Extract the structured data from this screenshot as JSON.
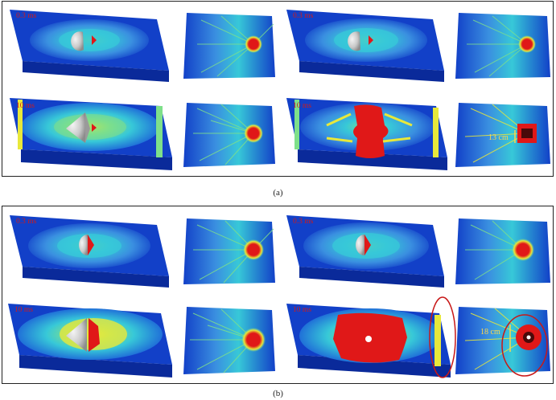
{
  "figure": {
    "caption_a": "(a)",
    "caption_b": "(b)",
    "panel_a": {
      "time_labels": [
        "0.3 ms",
        "0.3 ms",
        "10 ms",
        "10 ms"
      ],
      "dimension_label": "13 cm"
    },
    "panel_b": {
      "time_labels": [
        "0.3 ms",
        "0.3 ms",
        "10 ms",
        "10 ms"
      ],
      "dimension_label": "18 cm"
    }
  },
  "colors": {
    "slab_blue": "#1240c8",
    "slab_side": "#0a2a9a",
    "contour_light": "#37c8d8",
    "contour_green": "#7ee08a",
    "contour_yellow": "#e8e83a",
    "damage_red": "#e01818",
    "projectile_gray": "#c9c9c9",
    "label_red": "#d21a1a",
    "label_yellow": "#ffd84a",
    "highlight_ellipse": "#c81818"
  }
}
